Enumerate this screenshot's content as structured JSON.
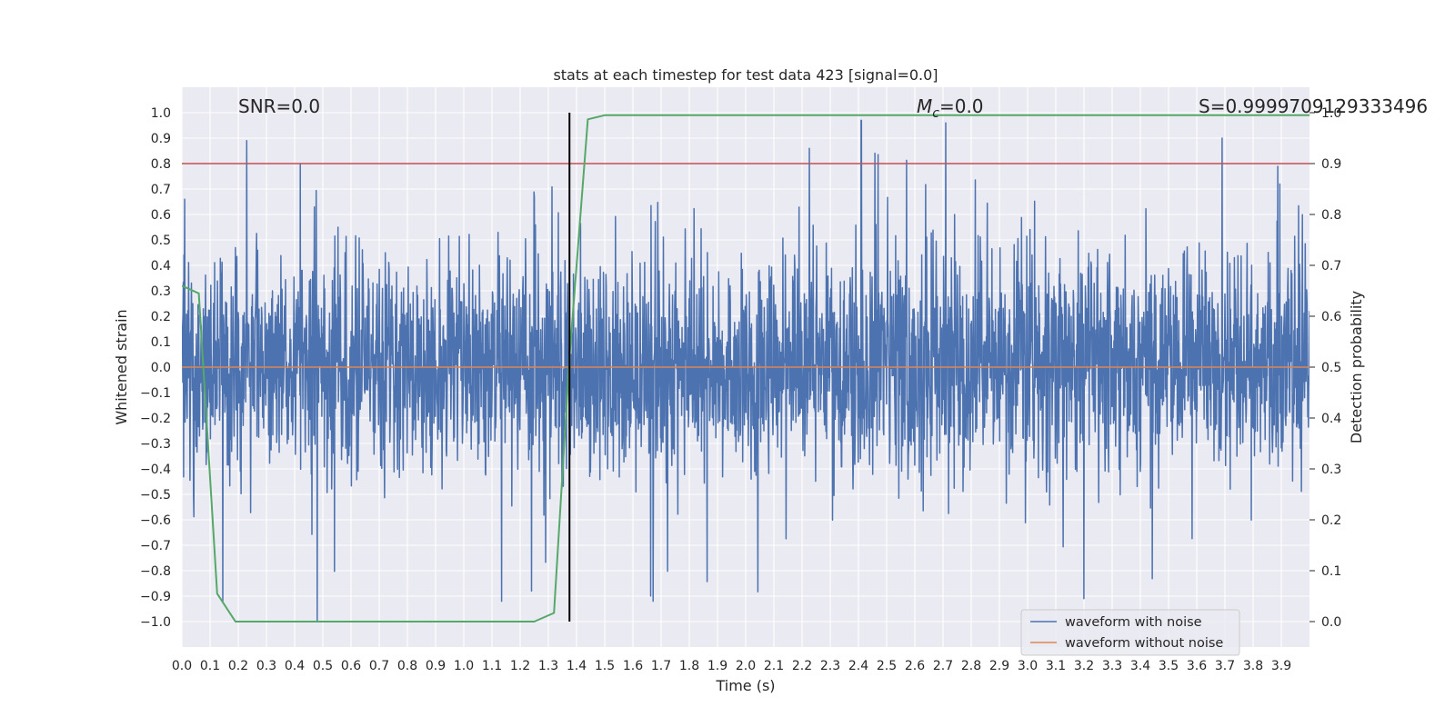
{
  "chart_data": {
    "type": "line",
    "title": "stats at each timestep for test data 423 [signal=0.0]",
    "xlabel": "Time (s)",
    "ylabel": "Whitened strain",
    "y2label": "Detection probability",
    "xlim": [
      0.0,
      4.0
    ],
    "ylim": [
      -1.1,
      1.1
    ],
    "y2lim": [
      -0.05,
      1.05
    ],
    "xticks": [
      "0.0",
      "0.1",
      "0.2",
      "0.3",
      "0.4",
      "0.5",
      "0.6",
      "0.7",
      "0.8",
      "0.9",
      "1.0",
      "1.1",
      "1.2",
      "1.3",
      "1.4",
      "1.5",
      "1.6",
      "1.7",
      "1.8",
      "1.9",
      "2.0",
      "2.1",
      "2.2",
      "2.3",
      "2.4",
      "2.5",
      "2.6",
      "2.7",
      "2.8",
      "2.9",
      "3.0",
      "3.1",
      "3.2",
      "3.3",
      "3.4",
      "3.5",
      "3.6",
      "3.7",
      "3.8",
      "3.9"
    ],
    "yticks": [
      "1.0",
      "0.9",
      "0.8",
      "0.7",
      "0.6",
      "0.5",
      "0.4",
      "0.3",
      "0.2",
      "0.1",
      "0.0",
      "-0.1",
      "-0.2",
      "-0.3",
      "-0.4",
      "-0.5",
      "-0.6",
      "-0.7",
      "-0.8",
      "-0.9",
      "-1.0"
    ],
    "y2ticks": [
      "1.0",
      "0.9",
      "0.8",
      "0.7",
      "0.6",
      "0.5",
      "0.4",
      "0.3",
      "0.2",
      "0.1",
      "0.0"
    ],
    "grid": true,
    "legend_position": "lower-right",
    "annotations": {
      "snr": "SNR=0.0",
      "mc_prefix": "M",
      "mc_sub": "c",
      "mc_suffix": "=0.0",
      "score": "S=0.9999709129333496"
    },
    "series": [
      {
        "name": "waveform with noise",
        "color": "#4c72b0",
        "axis": "left",
        "description": "dense whitened noise, amplitude mostly within ±0.6, peaks near 0.97 and -1.0",
        "peaks": [
          {
            "x": 0.01,
            "y": 0.66
          },
          {
            "x": 0.23,
            "y": 0.89
          },
          {
            "x": 0.42,
            "y": 0.8
          },
          {
            "x": 2.41,
            "y": 0.97
          },
          {
            "x": 2.71,
            "y": 0.96
          },
          {
            "x": 3.69,
            "y": 0.9
          },
          {
            "x": 0.48,
            "y": -1.0
          },
          {
            "x": 3.2,
            "y": -0.91
          },
          {
            "x": 1.24,
            "y": -0.88
          }
        ]
      },
      {
        "name": "waveform without noise",
        "color": "#dd8452",
        "axis": "left",
        "x": [
          0.0,
          4.0
        ],
        "y": [
          0.0,
          0.0
        ]
      },
      {
        "name": "",
        "color": "#55a868",
        "axis": "right",
        "x": [
          0.0,
          0.06,
          0.125,
          0.19,
          0.5,
          1.0,
          1.25,
          1.32,
          1.375,
          1.44,
          1.5,
          4.0
        ],
        "y": [
          0.66,
          0.645,
          0.055,
          0.0,
          0.0,
          0.0,
          0.0,
          0.017,
          0.52,
          0.987,
          0.995,
          0.995
        ]
      }
    ],
    "threshold": {
      "color": "#c44e52",
      "axis": "right",
      "value": 0.9
    },
    "detection_marker": {
      "color": "#000000",
      "x": 1.375,
      "y_from": 0.0,
      "y_to": 1.0
    }
  }
}
